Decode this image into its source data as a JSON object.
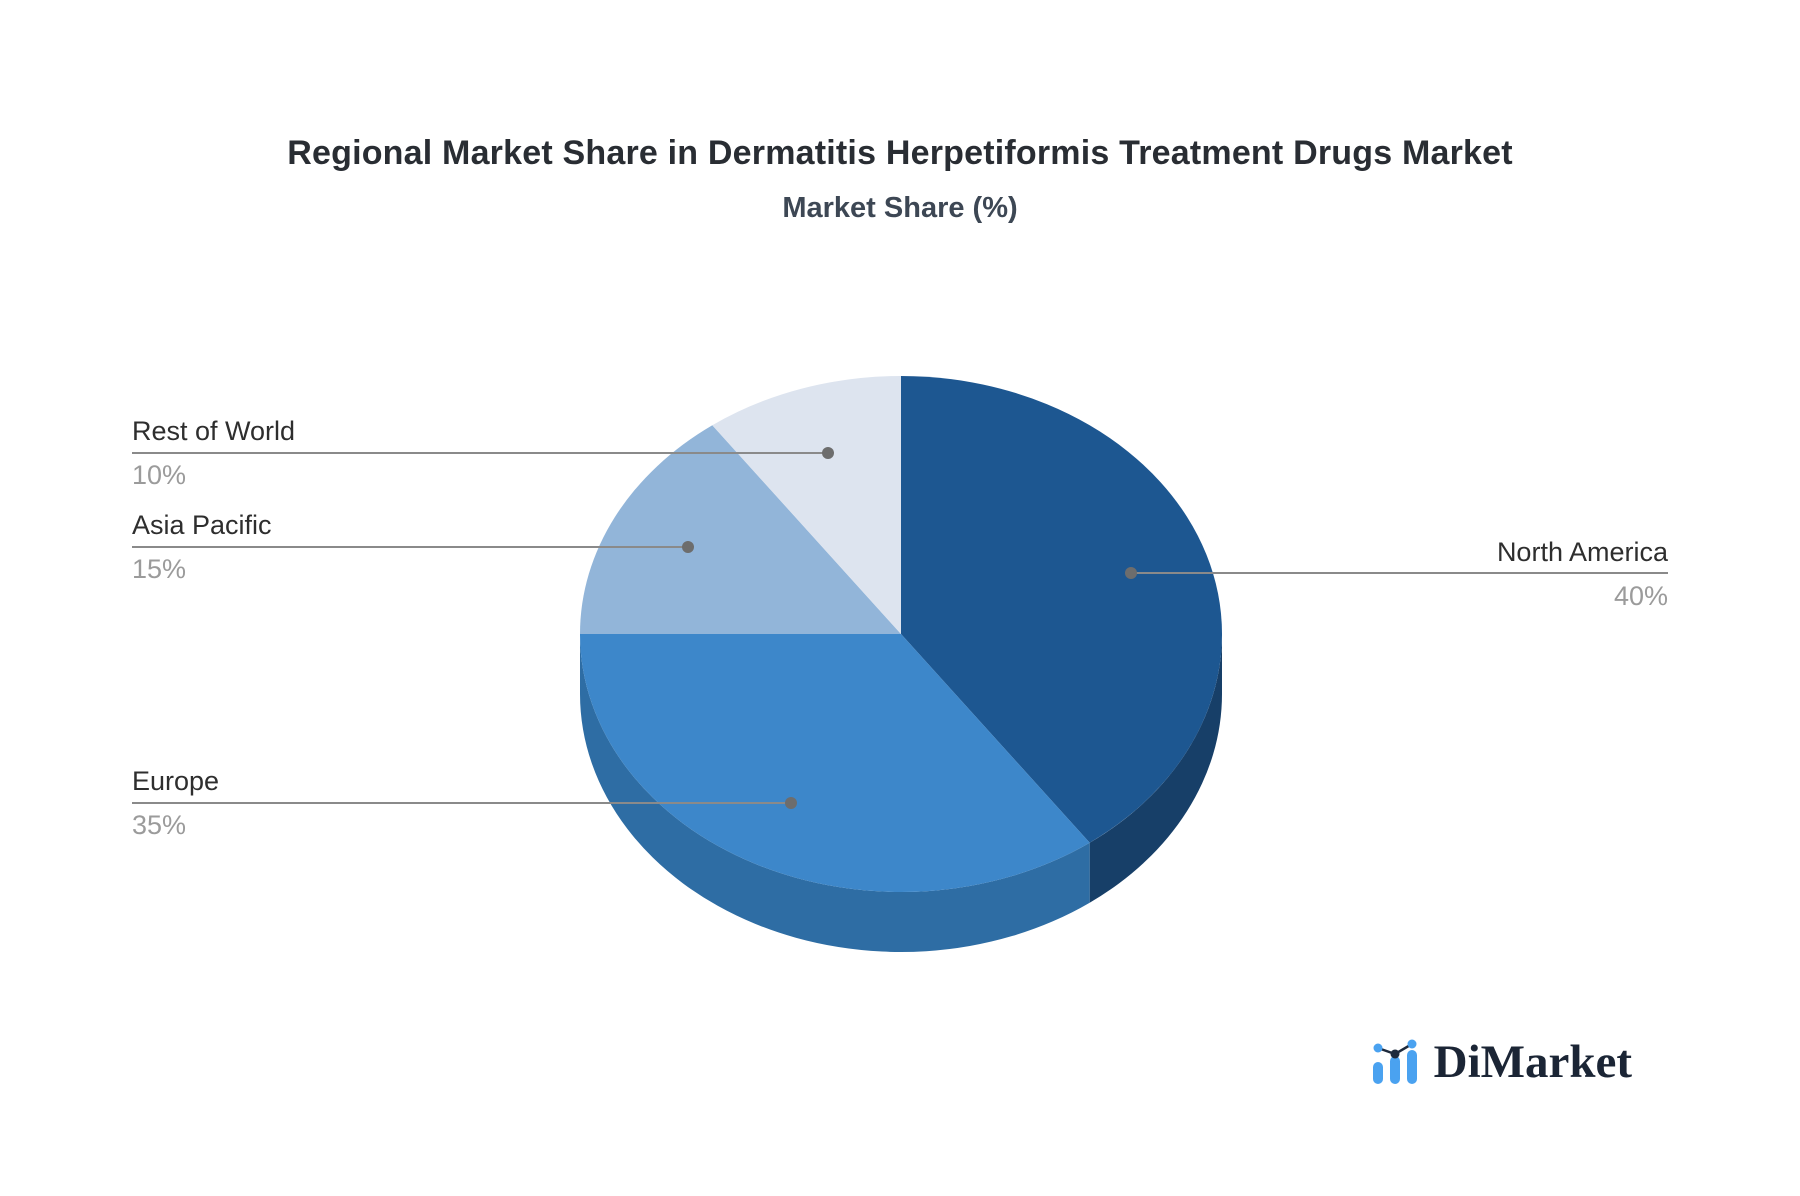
{
  "header": {
    "title": "Regional Market Share in Dermatitis Herpetiformis Treatment Drugs Market",
    "subtitle": "Market Share (%)"
  },
  "chart_data": {
    "type": "pie",
    "title": "Regional Market Share in Dermatitis Herpetiformis Treatment Drugs Market",
    "subtitle": "Market Share (%)",
    "unit": "%",
    "style": "3d-pie",
    "direction": "clockwise",
    "start_angle_deg": 0,
    "legend_position": "callout-labels",
    "slices": [
      {
        "label": "North America",
        "value": 40,
        "pct_label": "40%",
        "color": "#1d5791",
        "side_color": "#173f68"
      },
      {
        "label": "Europe",
        "value": 35,
        "pct_label": "35%",
        "color": "#3d87ca",
        "side_color": "#2e6da4"
      },
      {
        "label": "Asia Pacific",
        "value": 15,
        "pct_label": "15%",
        "color": "#92b5d9",
        "side_color": "#7ba3c9"
      },
      {
        "label": "Rest of World",
        "value": 10,
        "pct_label": "10%",
        "color": "#dde4ef",
        "side_color": "#c3cedd"
      }
    ],
    "callout_line_color": "#8a8a8a",
    "callout_dot_color": "#6d6d6d"
  },
  "branding": {
    "logo_text": "DiMarket",
    "logo_icon": "bar-line-chart-icon",
    "logo_text_color": "#1b2535",
    "logo_accent_color": "#4aa2f0"
  }
}
